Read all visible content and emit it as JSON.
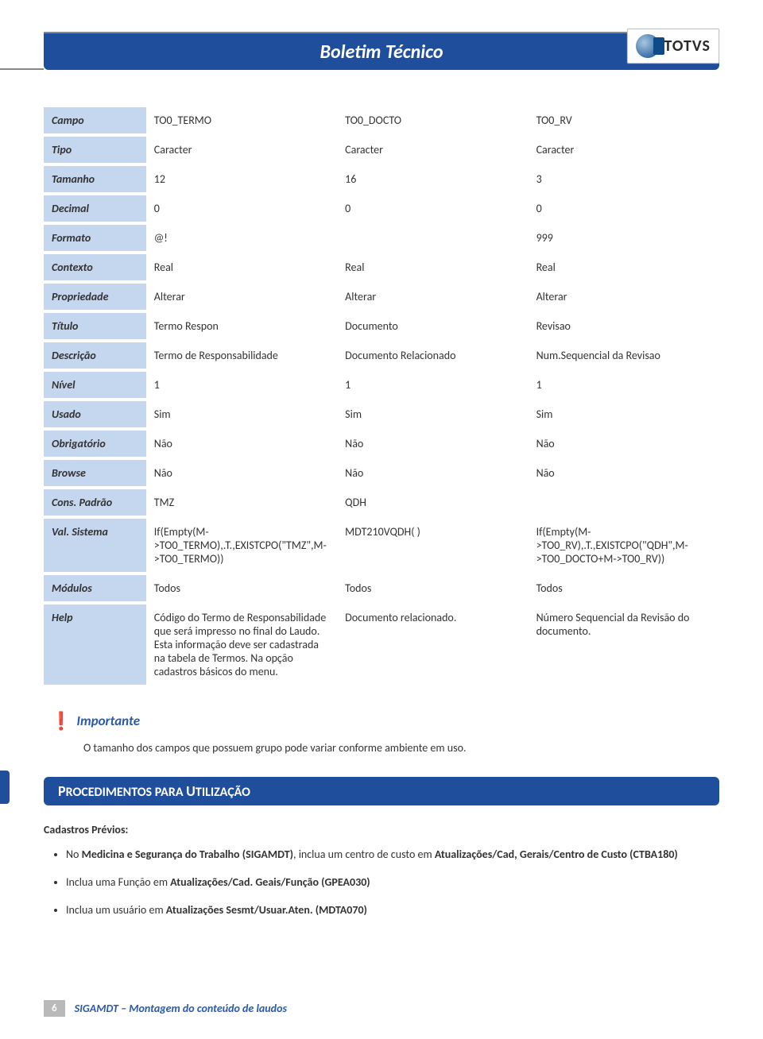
{
  "header": {
    "title": "Boletim Técnico",
    "logo_text": "TOTVS"
  },
  "table": {
    "columns": [
      "TO0_TERMO",
      "TO0_DOCTO",
      "TO0_RV"
    ],
    "rows": {
      "campo": {
        "label": "Campo",
        "c1": "TO0_TERMO",
        "c2": "TO0_DOCTO",
        "c3": "TO0_RV"
      },
      "tipo": {
        "label": "Tipo",
        "c1": "Caracter",
        "c2": "Caracter",
        "c3": "Caracter"
      },
      "tamanho": {
        "label": "Tamanho",
        "c1": "12",
        "c2": "16",
        "c3": "3"
      },
      "decimal": {
        "label": "Decimal",
        "c1": "0",
        "c2": "0",
        "c3": "0"
      },
      "formato": {
        "label": "Formato",
        "c1": "@!",
        "c2": "",
        "c3": "999"
      },
      "contexto": {
        "label": "Contexto",
        "c1": "Real",
        "c2": "Real",
        "c3": "Real"
      },
      "propriedade": {
        "label": "Propriedade",
        "c1": "Alterar",
        "c2": "Alterar",
        "c3": "Alterar"
      },
      "titulo": {
        "label": "Título",
        "c1": "Termo Respon",
        "c2": "Documento",
        "c3": "Revisao"
      },
      "descricao": {
        "label": "Descrição",
        "c1": "Termo de Responsabilidade",
        "c2": "Documento Relacionado",
        "c3": "Num.Sequencial da Revisao"
      },
      "nivel": {
        "label": "Nível",
        "c1": "1",
        "c2": "1",
        "c3": "1"
      },
      "usado": {
        "label": "Usado",
        "c1": "Sim",
        "c2": "Sim",
        "c3": "Sim"
      },
      "obrigatorio": {
        "label": "Obrigatório",
        "c1": "Não",
        "c2": "Não",
        "c3": "Não"
      },
      "browse": {
        "label": "Browse",
        "c1": "Não",
        "c2": "Não",
        "c3": "Não"
      },
      "conspadrao": {
        "label": "Cons. Padrão",
        "c1": "TMZ",
        "c2": "QDH",
        "c3": ""
      },
      "valsistema": {
        "label": "Val. Sistema",
        "c1": "If(Empty(M->TO0_TERMO),.T.,EXISTCPO(\"TMZ\",M->TO0_TERMO))",
        "c2": "MDT210VQDH( )",
        "c3": "If(Empty(M->TO0_RV),.T.,EXISTCPO(\"QDH\",M->TO0_DOCTO+M->TO0_RV))"
      },
      "modulos": {
        "label": "Módulos",
        "c1": "Todos",
        "c2": "Todos",
        "c3": "Todos"
      },
      "help": {
        "label": "Help",
        "c1": "Código do Termo de Responsabilidade que será impresso no final do Laudo.\nEsta informação deve ser cadastrada na tabela de Termos. Na opção cadastros básicos do menu.",
        "c2": "Documento relacionado.",
        "c3": "Número Sequencial da Revisão do documento."
      }
    }
  },
  "important": {
    "label": "Importante",
    "note": "O tamanho dos campos que possuem grupo pode variar conforme ambiente em uso."
  },
  "section": {
    "title_a": "P",
    "title_b": "ROCEDIMENTOS PARA ",
    "title_c": "U",
    "title_d": "TILIZAÇÃO"
  },
  "cadastros": {
    "label": "Cadastros Prévios:",
    "items": [
      "No Medicina e Segurança do Trabalho (SIGAMDT), inclua um centro de custo em  Atualizações/Cad, Gerais/Centro de Custo (CTBA180)",
      "Inclua uma Função em Atualizações/Cad. Geais/Função (GPEA030)",
      "Inclua um usuário em Atualizações Sesmt/Usuar.Aten. (MDTA070)"
    ],
    "bold0a": "Medicina e Segurança do Trabalho (SIGAMDT)",
    "bold0b": "Atualizações/Cad, Gerais/Centro de Custo (CTBA180)",
    "bold1": "Atualizações/Cad. Geais/Função (GPEA030)",
    "bold2": "Atualizações Sesmt/Usuar.Aten. (MDTA070)"
  },
  "footer": {
    "page": "6",
    "title": "SIGAMDT – Montagem do conteúdo de laudos"
  },
  "colors": {
    "header_bg": "#1f4e9c",
    "th_bg": "#c5d6ef",
    "accent": "#2a5aad",
    "important_icon": "#d98f00",
    "footer_badge": "#b9b9b9"
  }
}
